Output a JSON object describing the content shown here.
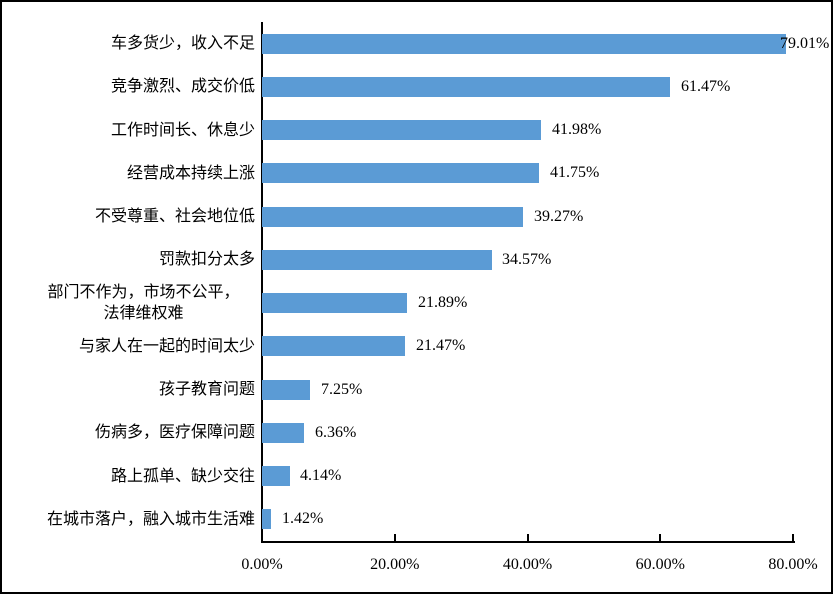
{
  "chart_data": {
    "type": "bar",
    "orientation": "horizontal",
    "title": "",
    "xlabel": "",
    "ylabel": "",
    "categories": [
      "车多货少，收入不足",
      "竞争激烈、成交价低",
      "工作时间长、休息少",
      "经营成本持续上涨",
      "不受尊重、社会地位低",
      "罚款扣分太多",
      "部门不作为，市场不公平，\n法律维权难",
      "与家人在一起的时间太少",
      "孩子教育问题",
      "伤病多，医疗保障问题",
      "路上孤单、缺少交往",
      "在城市落户，融入城市生活难"
    ],
    "values": [
      79.01,
      61.47,
      41.98,
      41.75,
      39.27,
      34.57,
      21.89,
      21.47,
      7.25,
      6.36,
      4.14,
      1.42
    ],
    "data_labels": [
      "79.01%",
      "61.47%",
      "41.98%",
      "41.75%",
      "39.27%",
      "34.57%",
      "21.89%",
      "21.47%",
      "7.25%",
      "6.36%",
      "4.14%",
      "1.42%"
    ],
    "x_ticks": [
      {
        "value": 0,
        "label": "0.00%"
      },
      {
        "value": 20,
        "label": "20.00%"
      },
      {
        "value": 40,
        "label": "40.00%"
      },
      {
        "value": 60,
        "label": "60.00%"
      },
      {
        "value": 80,
        "label": "80.00%"
      }
    ],
    "xlim": [
      0,
      80
    ],
    "grid": false,
    "legend_position": "none",
    "colors": {
      "bar": "#5B9BD5",
      "axis": "#000000",
      "text": "#000000",
      "background": "#FFFFFF",
      "frame_border": "#000000"
    }
  }
}
